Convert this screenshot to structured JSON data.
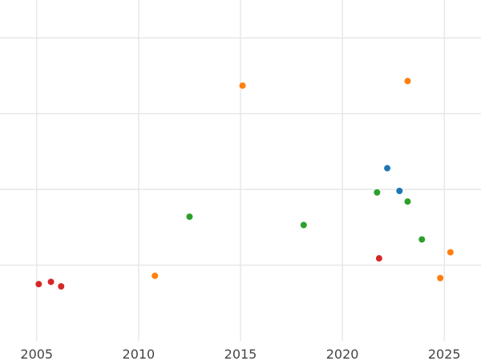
{
  "chart_data": {
    "type": "scatter",
    "title": "",
    "xlabel": "",
    "ylabel": "",
    "xlim": [
      2003.2,
      2026.8
    ],
    "ylim": [
      0,
      4.5
    ],
    "x_ticks": [
      2005,
      2010,
      2015,
      2020,
      2025
    ],
    "x_tick_labels": [
      "2005",
      "2010",
      "2015",
      "2020",
      "2025"
    ],
    "y_gridlines": [
      1,
      2,
      3,
      4
    ],
    "y_tick_labels_visible": false,
    "grid": true,
    "legend": "none",
    "series": [
      {
        "color": "#1f77b4",
        "points": [
          {
            "x": 2022.2,
            "y": 2.28
          },
          {
            "x": 2022.8,
            "y": 1.98
          }
        ]
      },
      {
        "color": "#ff7f0e",
        "points": [
          {
            "x": 2015.1,
            "y": 3.37
          },
          {
            "x": 2023.2,
            "y": 3.43
          },
          {
            "x": 2010.8,
            "y": 0.86
          },
          {
            "x": 2025.3,
            "y": 1.17
          },
          {
            "x": 2024.8,
            "y": 0.83
          }
        ]
      },
      {
        "color": "#2ca02c",
        "points": [
          {
            "x": 2012.5,
            "y": 1.64
          },
          {
            "x": 2018.1,
            "y": 1.53
          },
          {
            "x": 2021.7,
            "y": 1.96
          },
          {
            "x": 2023.2,
            "y": 1.84
          },
          {
            "x": 2023.9,
            "y": 1.34
          }
        ]
      },
      {
        "color": "#d62728",
        "points": [
          {
            "x": 2005.1,
            "y": 0.75
          },
          {
            "x": 2005.7,
            "y": 0.78
          },
          {
            "x": 2006.2,
            "y": 0.72
          },
          {
            "x": 2021.8,
            "y": 1.09
          }
        ]
      }
    ]
  }
}
